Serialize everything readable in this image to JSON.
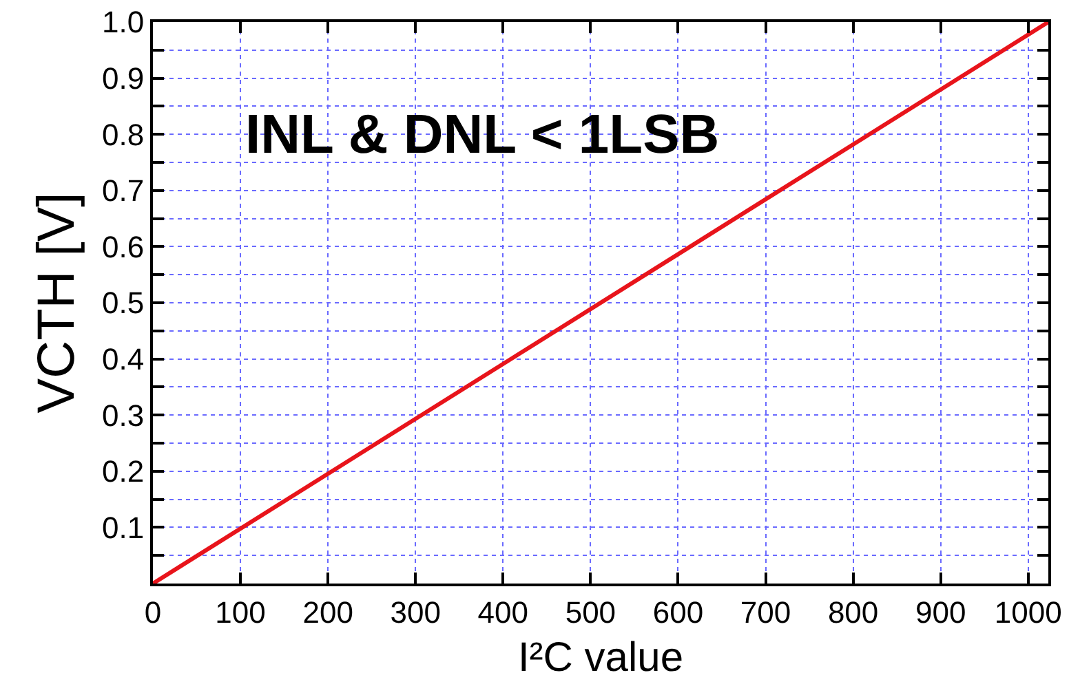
{
  "chart_data": {
    "type": "line",
    "xlabel": "I²C value",
    "ylabel": "VCTH [V]",
    "annotations": [
      "INL & DNL < 1LSB"
    ],
    "x": [
      0,
      1023
    ],
    "series": [
      {
        "color": "#e8141b",
        "values": [
          0,
          1.0
        ]
      }
    ],
    "xlim": [
      0,
      1023
    ],
    "xticks": [
      0,
      100,
      200,
      300,
      400,
      500,
      600,
      700,
      800,
      900,
      1000
    ],
    "ylim": [
      0,
      1.0
    ],
    "yticks": [
      {
        "value": 0,
        "label": null
      },
      {
        "value": 0.05,
        "label": null
      },
      0.1,
      {
        "value": 0.15,
        "label": null
      },
      0.2,
      {
        "value": 0.25,
        "label": null
      },
      0.3,
      {
        "value": 0.35,
        "label": null
      },
      0.4,
      {
        "value": 0.45,
        "label": null
      },
      0.5,
      {
        "value": 0.55,
        "label": null
      },
      0.6,
      {
        "value": 0.65,
        "label": null
      },
      0.7,
      {
        "value": 0.75,
        "label": null
      },
      0.8,
      {
        "value": 0.85,
        "label": null
      },
      0.9,
      {
        "value": 0.95,
        "label": null
      },
      {
        "value": 1,
        "label": "1.0"
      }
    ],
    "grid": true,
    "marker": "none",
    "line_style": "solid"
  }
}
